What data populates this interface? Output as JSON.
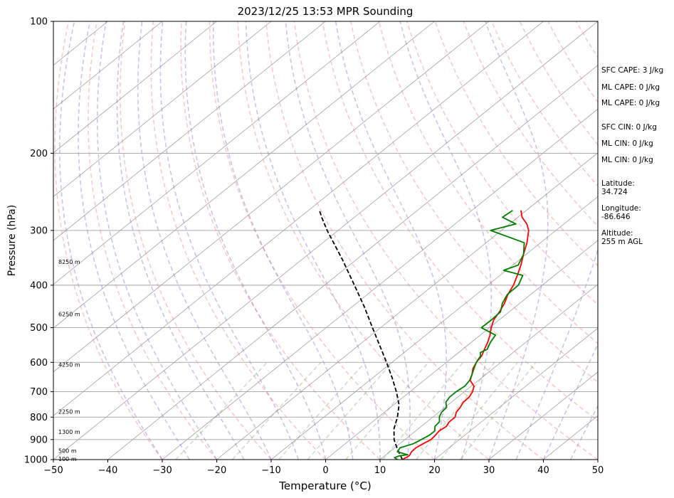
{
  "chart_data": {
    "type": "line",
    "title": "2023/12/25 13:53 MPR Sounding",
    "xlabel": "Temperature (°C)",
    "ylabel": "Pressure (hPa)",
    "xlim": [
      -50,
      50
    ],
    "ylim": [
      1000,
      100
    ],
    "y_scale": "log",
    "x_ticks": [
      "−50",
      "−40",
      "−30",
      "−20",
      "−10",
      "0",
      "10",
      "20",
      "30",
      "40",
      "50"
    ],
    "y_ticks": [
      {
        "p": 1000,
        "label": "1000"
      },
      {
        "p": 900,
        "label": "900"
      },
      {
        "p": 800,
        "label": "800"
      },
      {
        "p": 700,
        "label": "700"
      },
      {
        "p": 600,
        "label": "600"
      },
      {
        "p": 500,
        "label": "500"
      },
      {
        "p": 400,
        "label": "400"
      },
      {
        "p": 300,
        "label": "300"
      },
      {
        "p": 200,
        "label": "200"
      },
      {
        "p": 100,
        "label": "100"
      }
    ],
    "height_labels": [
      {
        "p": 997,
        "label": "100 m"
      },
      {
        "p": 955,
        "label": "500 m"
      },
      {
        "p": 864,
        "label": "1300 m"
      },
      {
        "p": 777,
        "label": "2250 m"
      },
      {
        "p": 607,
        "label": "4250 m"
      },
      {
        "p": 466,
        "label": "6250 m"
      },
      {
        "p": 354,
        "label": "8250 m"
      }
    ],
    "temperature": {
      "color": "#ff0000",
      "points": [
        [
          1000,
          14.1
        ],
        [
          980,
          14.5
        ],
        [
          960,
          14.0
        ],
        [
          940,
          13.9
        ],
        [
          920,
          14.3
        ],
        [
          900,
          14.8
        ],
        [
          880,
          14.6
        ],
        [
          860,
          14.3
        ],
        [
          840,
          14.6
        ],
        [
          820,
          14.1
        ],
        [
          800,
          14.1
        ],
        [
          780,
          13.2
        ],
        [
          760,
          12.8
        ],
        [
          740,
          12.2
        ],
        [
          720,
          12.1
        ],
        [
          700,
          11.5
        ],
        [
          680,
          10.5
        ],
        [
          660,
          8.5
        ],
        [
          640,
          7.5
        ],
        [
          620,
          6.3
        ],
        [
          600,
          5.5
        ],
        [
          580,
          5.0
        ],
        [
          560,
          4.0
        ],
        [
          540,
          3.0
        ],
        [
          520,
          1.8
        ],
        [
          500,
          0.3
        ],
        [
          480,
          -1.0
        ],
        [
          460,
          -1.8
        ],
        [
          440,
          -2.8
        ],
        [
          420,
          -4.2
        ],
        [
          400,
          -5.3
        ],
        [
          380,
          -6.8
        ],
        [
          360,
          -8.5
        ],
        [
          340,
          -10.5
        ],
        [
          320,
          -12.5
        ],
        [
          300,
          -15.0
        ],
        [
          290,
          -16.8
        ],
        [
          280,
          -19.2
        ],
        [
          270,
          -21.0
        ]
      ]
    },
    "dewpoint": {
      "color": "#008000",
      "points": [
        [
          1000,
          13.2
        ],
        [
          990,
          12.2
        ],
        [
          980,
          12.7
        ],
        [
          975,
          14.0
        ],
        [
          960,
          11.4
        ],
        [
          940,
          11.0
        ],
        [
          920,
          12.5
        ],
        [
          900,
          13.0
        ],
        [
          880,
          13.5
        ],
        [
          860,
          13.5
        ],
        [
          840,
          12.5
        ],
        [
          820,
          12.3
        ],
        [
          800,
          11.2
        ],
        [
          780,
          10.5
        ],
        [
          760,
          10.3
        ],
        [
          740,
          9.0
        ],
        [
          720,
          8.5
        ],
        [
          700,
          8.5
        ],
        [
          680,
          8.8
        ],
        [
          660,
          8.4
        ],
        [
          640,
          7.5
        ],
        [
          620,
          6.5
        ],
        [
          600,
          5.5
        ],
        [
          580,
          4.8
        ],
        [
          570,
          4.0
        ],
        [
          560,
          4.5
        ],
        [
          540,
          3.5
        ],
        [
          520,
          2.8
        ],
        [
          500,
          -1.5
        ],
        [
          480,
          -1.4
        ],
        [
          460,
          -1.6
        ],
        [
          440,
          -3.2
        ],
        [
          420,
          -4.3
        ],
        [
          400,
          -4.4
        ],
        [
          380,
          -5.8
        ],
        [
          370,
          -10.5
        ],
        [
          360,
          -9.0
        ],
        [
          340,
          -10.5
        ],
        [
          320,
          -13.0
        ],
        [
          300,
          -22.0
        ],
        [
          290,
          -18.8
        ],
        [
          280,
          -22.8
        ],
        [
          270,
          -22.5
        ]
      ]
    },
    "parcel": {
      "color": "#000000",
      "points": [
        [
          1000,
          14.1
        ],
        [
          950,
          11.0
        ],
        [
          900,
          8.0
        ],
        [
          850,
          5.5
        ],
        [
          800,
          3.5
        ],
        [
          750,
          1.0
        ],
        [
          700,
          -2.5
        ],
        [
          650,
          -6.5
        ],
        [
          600,
          -11.0
        ],
        [
          550,
          -16.0
        ],
        [
          500,
          -21.5
        ],
        [
          450,
          -27.5
        ],
        [
          400,
          -34.5
        ],
        [
          350,
          -42.5
        ],
        [
          300,
          -52.0
        ],
        [
          280,
          -56.0
        ],
        [
          270,
          -58.0
        ]
      ]
    },
    "grid": true,
    "legend": "none"
  },
  "indices": [
    "SFC CAPE: 3 J/kg",
    "ML CAPE: 0 J/kg",
    "ML CAPE: 0 J/kg",
    "SFC CIN: 0 J/kg",
    "ML CIN: 0 J/kg",
    "ML CIN: 0 J/kg"
  ],
  "location": {
    "lat_label": "Latitude:",
    "lat_value": "34.724",
    "lon_label": "Longitude:",
    "lon_value": "-86.646",
    "alt_label": "Altitude:",
    "alt_value": "255 m AGL"
  },
  "colors": {
    "dry_adiabat": "#f08080",
    "moist_adiabat": "#6a5acd",
    "mixing_ratio": "#2e8b2e",
    "isotherm": "#808080"
  }
}
